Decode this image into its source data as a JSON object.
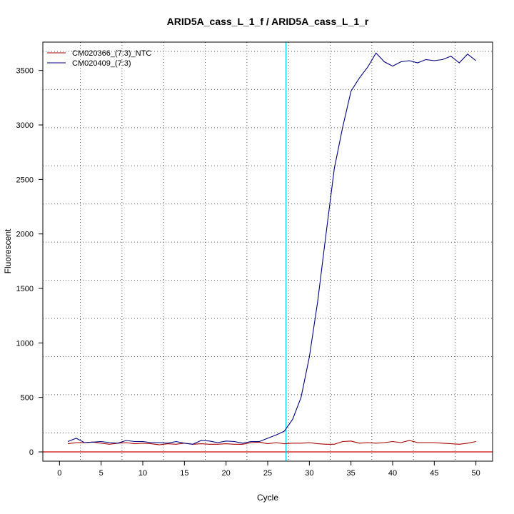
{
  "chart_data": {
    "type": "line",
    "title": "ARID5A_cass_L_1_f / ARID5A_cass_L_1_r",
    "xlabel": "Cycle",
    "ylabel": "Fluorescent",
    "xlim": [
      -2,
      52
    ],
    "ylim": [
      -85,
      3760
    ],
    "x_ticks": [
      0,
      5,
      10,
      15,
      20,
      25,
      30,
      35,
      40,
      45,
      50
    ],
    "y_ticks": [
      0,
      500,
      1000,
      1500,
      2000,
      2500,
      3000,
      3500
    ],
    "grid": true,
    "grid_x": [
      2.5,
      7.5,
      12.5,
      17.5,
      22.5,
      27.5,
      32.5,
      37.5,
      42.5,
      47.5
    ],
    "grid_y": [
      175,
      525,
      875,
      1225,
      1575,
      1925,
      2275,
      2625,
      2975,
      3325,
      3675
    ],
    "legend_position": "top-left",
    "threshold": {
      "cycle": 27.2,
      "color": "#00ccee"
    },
    "baseline": {
      "value": 0,
      "color": "#cc0000"
    },
    "x": [
      1,
      2,
      3,
      4,
      5,
      6,
      7,
      8,
      9,
      10,
      11,
      12,
      13,
      14,
      15,
      16,
      17,
      18,
      19,
      20,
      21,
      22,
      23,
      24,
      25,
      26,
      27,
      28,
      29,
      30,
      31,
      32,
      33,
      34,
      35,
      36,
      37,
      38,
      39,
      40,
      41,
      42,
      43,
      44,
      45,
      46,
      47,
      48,
      49,
      50
    ],
    "series": [
      {
        "name": "CM020366_(7:3)_NTC",
        "color": "#aa0000",
        "values": [
          75,
          85,
          85,
          90,
          80,
          70,
          80,
          85,
          75,
          80,
          75,
          65,
          75,
          70,
          80,
          70,
          75,
          70,
          70,
          75,
          70,
          70,
          85,
          90,
          75,
          85,
          75,
          80,
          80,
          85,
          75,
          70,
          70,
          95,
          100,
          80,
          85,
          80,
          85,
          95,
          85,
          105,
          85,
          85,
          85,
          80,
          75,
          70,
          80,
          95
        ]
      },
      {
        "name": "CM020409_(7:3)",
        "color": "#000080",
        "values": [
          95,
          125,
          85,
          90,
          95,
          85,
          80,
          105,
          95,
          95,
          85,
          85,
          80,
          95,
          80,
          70,
          105,
          100,
          85,
          100,
          95,
          80,
          95,
          95,
          125,
          155,
          190,
          300,
          500,
          870,
          1380,
          2000,
          2600,
          2980,
          3310,
          3430,
          3530,
          3660,
          3580,
          3540,
          3580,
          3590,
          3570,
          3600,
          3590,
          3600,
          3630,
          3570,
          3650,
          3590
        ]
      }
    ]
  }
}
